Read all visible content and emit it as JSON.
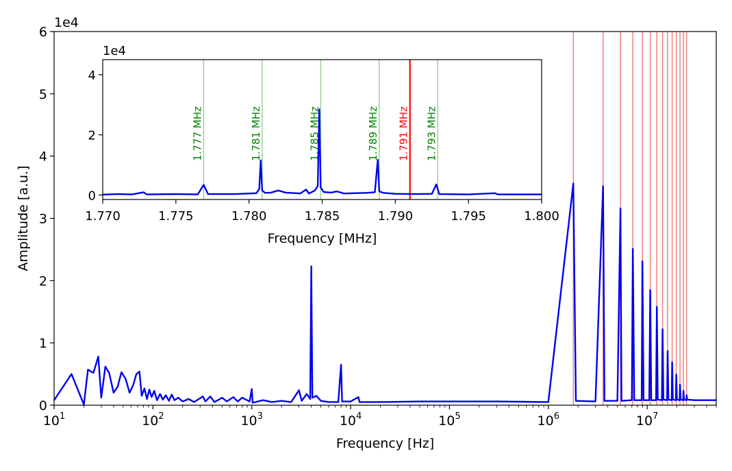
{
  "chart_data": [
    {
      "type": "line",
      "xlabel": "Frequency [Hz]",
      "ylabel": "Amplitude [a.u.]",
      "x_scale": "log",
      "xlim": [
        10,
        50000000
      ],
      "ylim": [
        0,
        60000
      ],
      "y_offset_label": "1e4",
      "y_ticks": [
        0,
        10000,
        20000,
        30000,
        40000,
        50000,
        60000
      ],
      "y_tick_labels": [
        "0",
        "1",
        "2",
        "3",
        "4",
        "5",
        "6"
      ],
      "x_tick_labels": [
        {
          "base": "10",
          "exp": "1",
          "value": 10
        },
        {
          "base": "10",
          "exp": "2",
          "value": 100
        },
        {
          "base": "10",
          "exp": "3",
          "value": 1000
        },
        {
          "base": "10",
          "exp": "4",
          "value": 10000
        },
        {
          "base": "10",
          "exp": "5",
          "value": 100000
        },
        {
          "base": "10",
          "exp": "6",
          "value": 1000000
        },
        {
          "base": "10",
          "exp": "7",
          "value": 10000000
        }
      ],
      "grid": false,
      "series": [
        {
          "color": "#0000ee",
          "points": [
            [
              10,
              800
            ],
            [
              15,
              5000
            ],
            [
              20,
              100
            ],
            [
              22,
              5700
            ],
            [
              25,
              5200
            ],
            [
              28,
              7800
            ],
            [
              30,
              1200
            ],
            [
              33,
              6200
            ],
            [
              36,
              5200
            ],
            [
              40,
              2000
            ],
            [
              44,
              3000
            ],
            [
              48,
              5300
            ],
            [
              53,
              4200
            ],
            [
              58,
              2000
            ],
            [
              63,
              3200
            ],
            [
              68,
              5000
            ],
            [
              73,
              5400
            ],
            [
              77,
              1500
            ],
            [
              82,
              2700
            ],
            [
              87,
              1000
            ],
            [
              92,
              2500
            ],
            [
              97,
              1300
            ],
            [
              103,
              2300
            ],
            [
              110,
              800
            ],
            [
              118,
              1800
            ],
            [
              126,
              900
            ],
            [
              135,
              1600
            ],
            [
              145,
              700
            ],
            [
              155,
              1700
            ],
            [
              165,
              800
            ],
            [
              180,
              1200
            ],
            [
              200,
              600
            ],
            [
              230,
              1000
            ],
            [
              260,
              500
            ],
            [
              320,
              1400
            ],
            [
              340,
              600
            ],
            [
              380,
              1400
            ],
            [
              420,
              500
            ],
            [
              500,
              1200
            ],
            [
              560,
              600
            ],
            [
              650,
              1300
            ],
            [
              720,
              600
            ],
            [
              800,
              1200
            ],
            [
              950,
              600
            ],
            [
              1000,
              2600
            ],
            [
              1020,
              400
            ],
            [
              1300,
              800
            ],
            [
              1600,
              500
            ],
            [
              2000,
              700
            ],
            [
              2500,
              500
            ],
            [
              3000,
              2400
            ],
            [
              3200,
              700
            ],
            [
              3600,
              1800
            ],
            [
              3900,
              1000
            ],
            [
              4000,
              22300
            ],
            [
              4100,
              1200
            ],
            [
              4500,
              1500
            ],
            [
              5000,
              700
            ],
            [
              6000,
              500
            ],
            [
              7500,
              500
            ],
            [
              8000,
              6500
            ],
            [
              8200,
              600
            ],
            [
              10000,
              600
            ],
            [
              12000,
              1300
            ],
            [
              12300,
              500
            ],
            [
              20000,
              500
            ],
            [
              50000,
              600
            ],
            [
              100000,
              600
            ],
            [
              300000,
              600
            ],
            [
              1000000,
              500
            ],
            [
              1790000,
              35600
            ],
            [
              1900000,
              700
            ],
            [
              3000000,
              600
            ],
            [
              3580000,
              35200
            ],
            [
              3700000,
              700
            ],
            [
              5000000,
              700
            ],
            [
              5370000,
              31600
            ],
            [
              5500000,
              700
            ],
            [
              7000000,
              800
            ],
            [
              7160000,
              25100
            ],
            [
              7400000,
              800
            ],
            [
              8800000,
              800
            ],
            [
              8950000,
              23100
            ],
            [
              9200000,
              800
            ],
            [
              10500000,
              800
            ],
            [
              10740000,
              18500
            ],
            [
              11000000,
              800
            ],
            [
              12300000,
              800
            ],
            [
              12530000,
              15800
            ],
            [
              12800000,
              900
            ],
            [
              14100000,
              800
            ],
            [
              14320000,
              12200
            ],
            [
              14600000,
              900
            ],
            [
              15900000,
              800
            ],
            [
              16110000,
              8700
            ],
            [
              16400000,
              900
            ],
            [
              17700000,
              800
            ],
            [
              17900000,
              6900
            ],
            [
              18200000,
              900
            ],
            [
              19500000,
              800
            ],
            [
              19700000,
              4900
            ],
            [
              20000000,
              900
            ],
            [
              21300000,
              800
            ],
            [
              21490000,
              3300
            ],
            [
              21800000,
              900
            ],
            [
              23100000,
              800
            ],
            [
              23280000,
              2300
            ],
            [
              23600000,
              900
            ],
            [
              24900000,
              800
            ],
            [
              25070000,
              1600
            ],
            [
              25400000,
              900
            ],
            [
              30000000,
              800
            ],
            [
              50000000,
              800
            ]
          ]
        }
      ],
      "vertical_lines": {
        "color": "#f08080",
        "x": [
          1790000,
          3580000,
          5370000,
          7160000,
          8950000,
          10740000,
          12530000,
          14320000,
          16110000,
          17900000,
          19690000,
          21480000,
          23270000,
          25060000
        ]
      }
    },
    {
      "type": "line",
      "xlabel": "Frequency [MHz]",
      "xlim": [
        1.77,
        1.8
      ],
      "ylim": [
        -1500,
        45000
      ],
      "y_offset_label": "1e4",
      "y_ticks": [
        0,
        20000,
        40000
      ],
      "y_tick_labels": [
        "0",
        "2",
        "4"
      ],
      "x_ticks": [
        1.77,
        1.775,
        1.78,
        1.785,
        1.79,
        1.795,
        1.8
      ],
      "x_tick_labels": [
        "1.770",
        "1.775",
        "1.780",
        "1.785",
        "1.790",
        "1.795",
        "1.800"
      ],
      "grid": false,
      "series": [
        {
          "color": "#0000ee",
          "points": [
            [
              1.77,
              100
            ],
            [
              1.771,
              300
            ],
            [
              1.772,
              200
            ],
            [
              1.7728,
              900
            ],
            [
              1.773,
              200
            ],
            [
              1.775,
              300
            ],
            [
              1.7765,
              200
            ],
            [
              1.7769,
              3400
            ],
            [
              1.7772,
              300
            ],
            [
              1.779,
              300
            ],
            [
              1.7805,
              600
            ],
            [
              1.7807,
              2000
            ],
            [
              1.7808,
              11500
            ],
            [
              1.7809,
              1500
            ],
            [
              1.7811,
              700
            ],
            [
              1.7815,
              800
            ],
            [
              1.782,
              1500
            ],
            [
              1.7825,
              800
            ],
            [
              1.7835,
              500
            ],
            [
              1.7839,
              1800
            ],
            [
              1.7841,
              500
            ],
            [
              1.7845,
              1500
            ],
            [
              1.7847,
              3000
            ],
            [
              1.7848,
              28500
            ],
            [
              1.7849,
              2500
            ],
            [
              1.7851,
              1000
            ],
            [
              1.7856,
              800
            ],
            [
              1.786,
              1200
            ],
            [
              1.7865,
              500
            ],
            [
              1.788,
              700
            ],
            [
              1.7886,
              900
            ],
            [
              1.7888,
              11700
            ],
            [
              1.7889,
              1200
            ],
            [
              1.7892,
              700
            ],
            [
              1.79,
              400
            ],
            [
              1.7915,
              300
            ],
            [
              1.7925,
              400
            ],
            [
              1.7928,
              3500
            ],
            [
              1.793,
              300
            ],
            [
              1.795,
              200
            ],
            [
              1.7968,
              600
            ],
            [
              1.797,
              200
            ],
            [
              1.7985,
              200
            ],
            [
              1.8,
              200
            ]
          ]
        }
      ],
      "markers": [
        {
          "x": 1.7769,
          "label": "1.777 MHz",
          "color": "#008000",
          "line_color": "#90d090"
        },
        {
          "x": 1.7809,
          "label": "1.781 MHz",
          "color": "#008000",
          "line_color": "#90d090"
        },
        {
          "x": 1.7849,
          "label": "1.785 MHz",
          "color": "#008000",
          "line_color": "#90d090"
        },
        {
          "x": 1.7889,
          "label": "1.789 MHz",
          "color": "#008000",
          "line_color": "#90d090"
        },
        {
          "x": 1.791,
          "label": "1.791 MHz",
          "color": "#ff0000",
          "line_color": "#ff0000"
        },
        {
          "x": 1.7929,
          "label": "1.793 MHz",
          "color": "#008000",
          "line_color": "#90d090"
        }
      ]
    }
  ]
}
